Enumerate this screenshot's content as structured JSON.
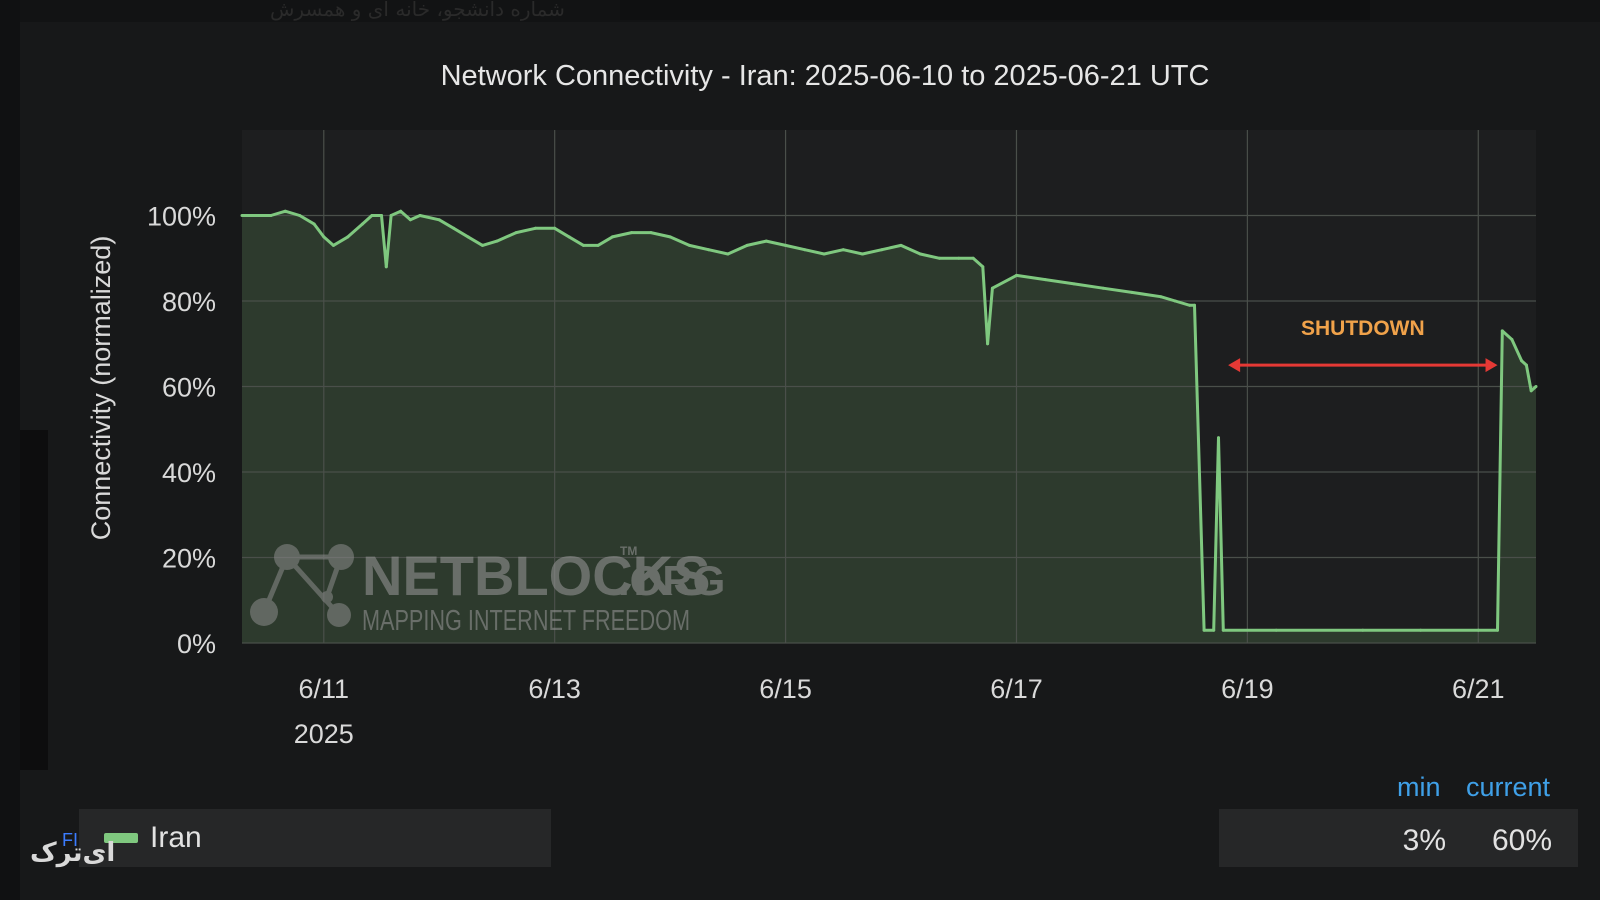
{
  "page": {
    "caption_fa": "شماره دانشجو، خانه ای و همسرش",
    "corner_mark": "FI",
    "logo_fa": "ای‌ترک"
  },
  "colors": {
    "background": "#171819",
    "plot_fill": "#2d3a2d",
    "series_line": "#7fc87f",
    "annotation_text": "#f0a24a",
    "annotation_arrow": "#e53935",
    "stats_header": "#3fa0e8"
  },
  "watermark": {
    "brand": "NETBLOCKS",
    "tld": ".ORG",
    "tm": "TM",
    "tagline": "MAPPING INTERNET FREEDOM"
  },
  "legend": {
    "items": [
      {
        "label": "Iran",
        "color": "#7fc87f"
      }
    ],
    "min_label": "min",
    "current_label": "current",
    "min_value": "3%",
    "current_value": "60%"
  },
  "chart_data": {
    "type": "area",
    "title": "Network Connectivity - Iran: 2025-06-10 to 2025-06-21 UTC",
    "xlabel": "",
    "ylabel": "Connectivity (normalized)",
    "xlim": [
      "2025-06-10T07:00",
      "2025-06-21T12:00"
    ],
    "ylim": [
      0,
      120
    ],
    "y_ticks": [
      0,
      20,
      40,
      60,
      80,
      100
    ],
    "y_tick_labels": [
      "0%",
      "20%",
      "40%",
      "60%",
      "80%",
      "100%"
    ],
    "x_ticks": [
      "2025-06-11",
      "2025-06-13",
      "2025-06-15",
      "2025-06-17",
      "2025-06-19",
      "2025-06-21"
    ],
    "x_tick_labels": [
      "6/11",
      "6/13",
      "6/15",
      "6/17",
      "6/19",
      "6/21"
    ],
    "x_sublabel": "2025",
    "grid": true,
    "legend_position": "bottom",
    "series": [
      {
        "name": "Iran",
        "points": [
          [
            "2025-06-10T07:00",
            100
          ],
          [
            "2025-06-10T10:00",
            100
          ],
          [
            "2025-06-10T13:00",
            100
          ],
          [
            "2025-06-10T16:00",
            101
          ],
          [
            "2025-06-10T19:00",
            100
          ],
          [
            "2025-06-10T22:00",
            98
          ],
          [
            "2025-06-11T00:00",
            95
          ],
          [
            "2025-06-11T02:00",
            93
          ],
          [
            "2025-06-11T05:00",
            95
          ],
          [
            "2025-06-11T08:00",
            98
          ],
          [
            "2025-06-11T10:00",
            100
          ],
          [
            "2025-06-11T12:00",
            100
          ],
          [
            "2025-06-11T13:00",
            88
          ],
          [
            "2025-06-11T14:00",
            100
          ],
          [
            "2025-06-11T16:00",
            101
          ],
          [
            "2025-06-11T18:00",
            99
          ],
          [
            "2025-06-11T20:00",
            100
          ],
          [
            "2025-06-12T00:00",
            99
          ],
          [
            "2025-06-12T03:00",
            97
          ],
          [
            "2025-06-12T06:00",
            95
          ],
          [
            "2025-06-12T09:00",
            93
          ],
          [
            "2025-06-12T12:00",
            94
          ],
          [
            "2025-06-12T16:00",
            96
          ],
          [
            "2025-06-12T20:00",
            97
          ],
          [
            "2025-06-13T00:00",
            97
          ],
          [
            "2025-06-13T03:00",
            95
          ],
          [
            "2025-06-13T06:00",
            93
          ],
          [
            "2025-06-13T09:00",
            93
          ],
          [
            "2025-06-13T12:00",
            95
          ],
          [
            "2025-06-13T16:00",
            96
          ],
          [
            "2025-06-13T20:00",
            96
          ],
          [
            "2025-06-14T00:00",
            95
          ],
          [
            "2025-06-14T04:00",
            93
          ],
          [
            "2025-06-14T08:00",
            92
          ],
          [
            "2025-06-14T12:00",
            91
          ],
          [
            "2025-06-14T16:00",
            93
          ],
          [
            "2025-06-14T20:00",
            94
          ],
          [
            "2025-06-15T00:00",
            93
          ],
          [
            "2025-06-15T04:00",
            92
          ],
          [
            "2025-06-15T08:00",
            91
          ],
          [
            "2025-06-15T12:00",
            92
          ],
          [
            "2025-06-15T16:00",
            91
          ],
          [
            "2025-06-15T20:00",
            92
          ],
          [
            "2025-06-16T00:00",
            93
          ],
          [
            "2025-06-16T04:00",
            91
          ],
          [
            "2025-06-16T08:00",
            90
          ],
          [
            "2025-06-16T12:00",
            90
          ],
          [
            "2025-06-16T15:00",
            90
          ],
          [
            "2025-06-16T17:00",
            88
          ],
          [
            "2025-06-16T18:00",
            70
          ],
          [
            "2025-06-16T19:00",
            83
          ],
          [
            "2025-06-17T00:00",
            86
          ],
          [
            "2025-06-17T06:00",
            85
          ],
          [
            "2025-06-17T12:00",
            84
          ],
          [
            "2025-06-17T18:00",
            83
          ],
          [
            "2025-06-18T00:00",
            82
          ],
          [
            "2025-06-18T06:00",
            81
          ],
          [
            "2025-06-18T09:00",
            80
          ],
          [
            "2025-06-18T12:00",
            79
          ],
          [
            "2025-06-18T13:00",
            79
          ],
          [
            "2025-06-18T15:00",
            3
          ],
          [
            "2025-06-18T17:00",
            3
          ],
          [
            "2025-06-18T18:00",
            48
          ],
          [
            "2025-06-18T19:00",
            3
          ],
          [
            "2025-06-19T06:00",
            3
          ],
          [
            "2025-06-20T00:00",
            3
          ],
          [
            "2025-06-20T12:00",
            3
          ],
          [
            "2025-06-21T00:00",
            3
          ],
          [
            "2025-06-21T04:00",
            3
          ],
          [
            "2025-06-21T05:00",
            73
          ],
          [
            "2025-06-21T07:00",
            71
          ],
          [
            "2025-06-21T09:00",
            66
          ],
          [
            "2025-06-21T10:00",
            65
          ],
          [
            "2025-06-21T11:00",
            59
          ],
          [
            "2025-06-21T12:00",
            60
          ]
        ]
      }
    ],
    "annotations": [
      {
        "text": "SHUTDOWN",
        "x_start": "2025-06-18T20:00",
        "x_end": "2025-06-21T04:00",
        "y": 65
      }
    ]
  }
}
